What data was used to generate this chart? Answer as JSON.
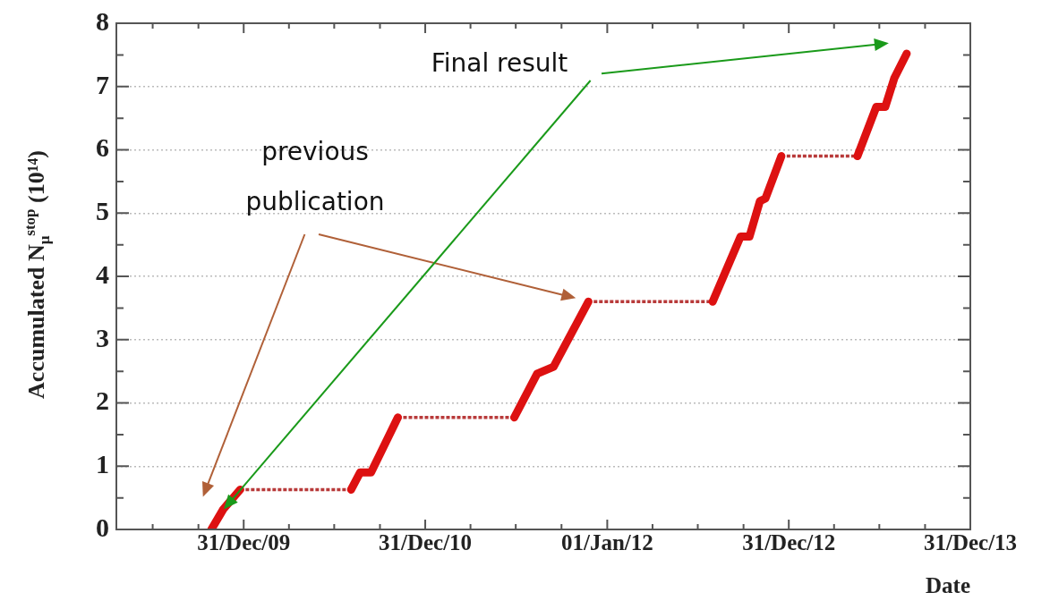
{
  "chart_data": {
    "type": "line",
    "xlabel": "Date",
    "ylabel": "Accumulated N$_{μ}$$^{stop}$ (10¹⁴)",
    "xlim": [
      "2009-04-19",
      "2013-12-31"
    ],
    "xticks": [
      {
        "value": "2009-07-01",
        "label": null
      },
      {
        "value": "2009-10-01",
        "label": null
      },
      {
        "value": "2009-12-31",
        "label": "31/Dec/09"
      },
      {
        "value": "2010-04-01",
        "label": null
      },
      {
        "value": "2010-07-01",
        "label": null
      },
      {
        "value": "2010-10-01",
        "label": null
      },
      {
        "value": "2010-12-31",
        "label": "31/Dec/10"
      },
      {
        "value": "2011-04-01",
        "label": null
      },
      {
        "value": "2011-07-01",
        "label": null
      },
      {
        "value": "2011-10-01",
        "label": null
      },
      {
        "value": "2012-01-01",
        "label": "01/Jan/12"
      },
      {
        "value": "2012-04-01",
        "label": null
      },
      {
        "value": "2012-07-01",
        "label": null
      },
      {
        "value": "2012-10-01",
        "label": null
      },
      {
        "value": "2012-12-31",
        "label": "31/Dec/12"
      },
      {
        "value": "2013-04-01",
        "label": null
      },
      {
        "value": "2013-07-01",
        "label": null
      },
      {
        "value": "2013-10-01",
        "label": null
      },
      {
        "value": "2013-12-31",
        "label": "31/Dec/13"
      }
    ],
    "ylim": [
      0,
      8
    ],
    "yticks": [
      0,
      {
        "value": 0.5,
        "label": null
      },
      1,
      {
        "value": 1.5,
        "label": null
      },
      2,
      {
        "value": 2.5,
        "label": null
      },
      3,
      {
        "value": 3.5,
        "label": null
      },
      4,
      {
        "value": 4.5,
        "label": null
      },
      5,
      {
        "value": 5.5,
        "label": null
      },
      6,
      {
        "value": 6.5,
        "label": null
      },
      7,
      {
        "value": 7.5,
        "label": null
      },
      8
    ],
    "grid": "y",
    "legend": false,
    "marker": "none",
    "series": [
      {
        "color": "#dd1111",
        "line_style": "solid",
        "x": [
          "2009-10-27",
          "2009-11-20",
          "2009-12-24",
          "2010-01-01",
          "2010-08-04",
          "2010-08-22",
          "2010-09-13",
          "2010-11-06",
          "2010-12-01",
          "2011-06-28",
          "2011-08-13",
          "2011-09-15",
          "2011-11-24",
          "2012-01-01",
          "2012-07-31",
          "2012-09-25",
          "2012-10-13",
          "2012-11-03",
          "2012-11-14",
          "2012-12-16",
          "2013-01-01",
          "2013-05-18",
          "2013-06-25",
          "2013-07-13",
          "2013-07-31",
          "2013-08-25"
        ],
        "values": [
          0,
          0.32,
          0.63,
          null,
          0.63,
          0.9,
          0.9,
          1.77,
          null,
          1.77,
          2.46,
          2.57,
          3.6,
          null,
          3.6,
          4.63,
          4.63,
          5.19,
          5.23,
          5.9,
          null,
          5.9,
          6.68,
          6.68,
          7.13,
          7.52
        ]
      },
      {
        "color": "#b83a3a",
        "line_style": "dotted",
        "x": [
          "2009-12-24",
          "2010-08-04",
          "2010-08-10",
          "2010-11-06",
          "2011-06-28",
          "2011-07-01",
          "2011-11-24",
          "2012-07-31",
          "2012-08-01",
          "2012-12-16",
          "2013-05-18"
        ],
        "values": [
          0.63,
          0.63,
          null,
          1.77,
          1.77,
          null,
          3.6,
          3.6,
          null,
          5.9,
          5.9
        ]
      }
    ],
    "annotations": [
      "previous publication",
      "Final result"
    ]
  }
}
